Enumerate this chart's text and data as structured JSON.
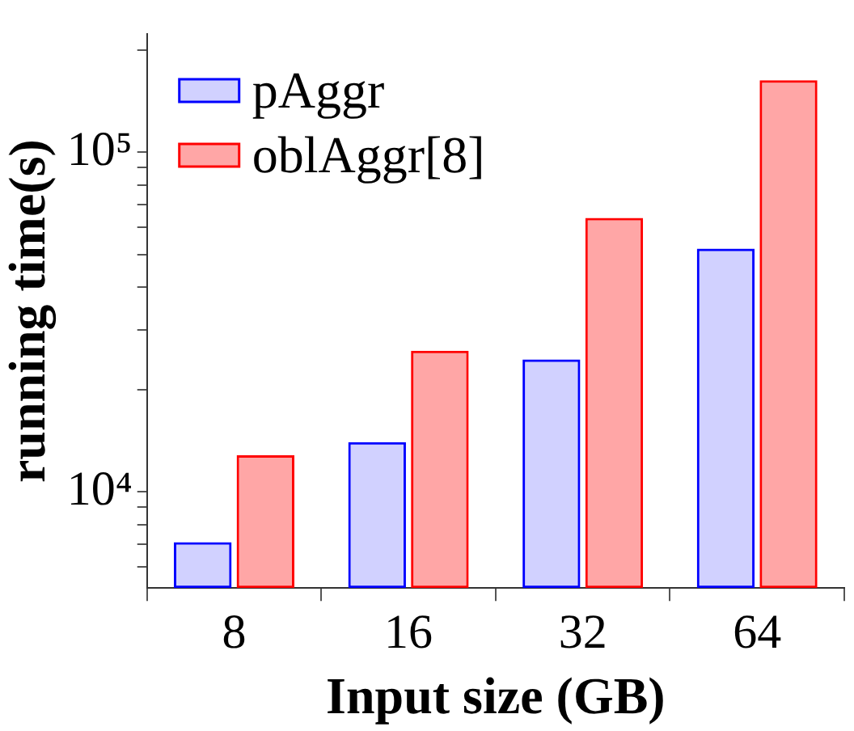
{
  "chart_data": {
    "type": "bar",
    "xlabel": "Input size (GB)",
    "ylabel": "running time(s)",
    "categories": [
      "8",
      "16",
      "32",
      "64"
    ],
    "series": [
      {
        "name": "pAggr",
        "color": "#0000ff",
        "values": [
          7100,
          14000,
          24500,
          52000
        ]
      },
      {
        "name": "oblAggr[8]",
        "color": "#ff0000",
        "values": [
          12800,
          26000,
          64000,
          163000
        ]
      }
    ],
    "log": "y",
    "ylim": [
      5200,
      223000
    ],
    "yticks": [
      {
        "value": 6000,
        "label": null
      },
      {
        "value": 7000,
        "label": null
      },
      {
        "value": 8000,
        "label": null
      },
      {
        "value": 9000,
        "label": null
      },
      {
        "value": 10000,
        "label": "10⁴"
      },
      {
        "value": 20000,
        "label": null
      },
      {
        "value": 30000,
        "label": null
      },
      {
        "value": 40000,
        "label": null
      },
      {
        "value": 50000,
        "label": null
      },
      {
        "value": 60000,
        "label": null
      },
      {
        "value": 70000,
        "label": null
      },
      {
        "value": 80000,
        "label": null
      },
      {
        "value": 90000,
        "label": null
      },
      {
        "value": 100000,
        "label": "10⁵"
      },
      {
        "value": 200000,
        "label": null
      }
    ],
    "legend": "top left",
    "grid": false
  }
}
